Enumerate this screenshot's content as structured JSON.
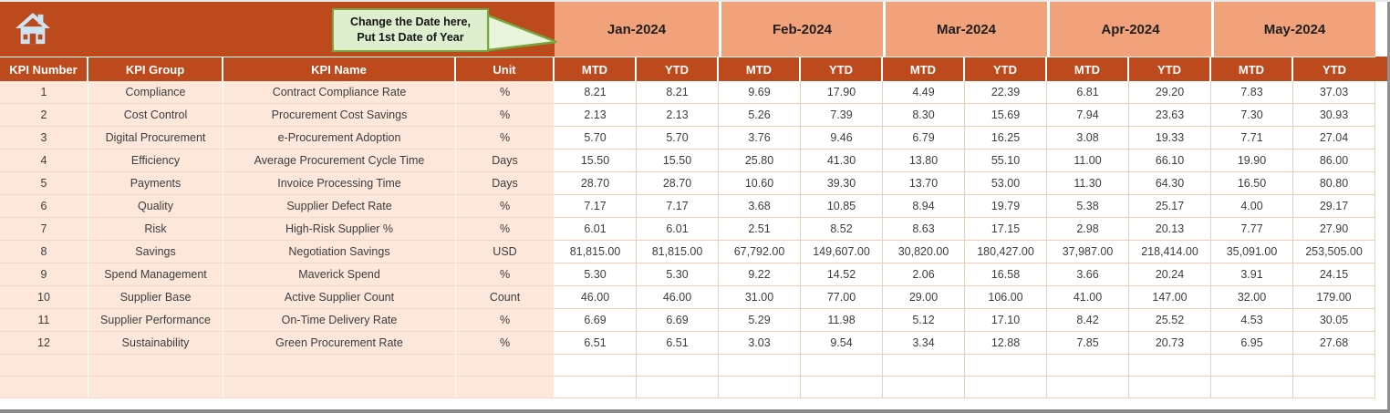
{
  "callout": {
    "line1": "Change the Date here,",
    "line2": "Put 1st Date of Year"
  },
  "table": {
    "columns": [
      "KPI Number",
      "KPI Group",
      "KPI Name",
      "Unit"
    ],
    "months": [
      "Jan-2024",
      "Feb-2024",
      "Mar-2024",
      "Apr-2024",
      "May-2024"
    ],
    "subcolumns": [
      "MTD",
      "YTD"
    ],
    "rows": [
      {
        "num": "1",
        "group": "Compliance",
        "name": "Contract Compliance Rate",
        "unit": "%",
        "values": [
          "8.21",
          "8.21",
          "9.69",
          "17.90",
          "4.49",
          "22.39",
          "6.81",
          "29.20",
          "7.83",
          "37.03"
        ]
      },
      {
        "num": "2",
        "group": "Cost Control",
        "name": "Procurement Cost Savings",
        "unit": "%",
        "values": [
          "2.13",
          "2.13",
          "5.26",
          "7.39",
          "8.30",
          "15.69",
          "7.94",
          "23.63",
          "7.30",
          "30.93"
        ]
      },
      {
        "num": "3",
        "group": "Digital Procurement",
        "name": "e-Procurement Adoption",
        "unit": "%",
        "values": [
          "5.70",
          "5.70",
          "3.76",
          "9.46",
          "6.79",
          "16.25",
          "3.08",
          "19.33",
          "7.71",
          "27.04"
        ]
      },
      {
        "num": "4",
        "group": "Efficiency",
        "name": "Average Procurement Cycle Time",
        "unit": "Days",
        "values": [
          "15.50",
          "15.50",
          "25.80",
          "41.30",
          "13.80",
          "55.10",
          "11.00",
          "66.10",
          "19.90",
          "86.00"
        ]
      },
      {
        "num": "5",
        "group": "Payments",
        "name": "Invoice Processing Time",
        "unit": "Days",
        "values": [
          "28.70",
          "28.70",
          "10.60",
          "39.30",
          "13.70",
          "53.00",
          "11.30",
          "64.30",
          "16.50",
          "80.80"
        ]
      },
      {
        "num": "6",
        "group": "Quality",
        "name": "Supplier Defect Rate",
        "unit": "%",
        "values": [
          "7.17",
          "7.17",
          "3.68",
          "10.85",
          "8.94",
          "19.79",
          "5.38",
          "25.17",
          "4.00",
          "29.17"
        ]
      },
      {
        "num": "7",
        "group": "Risk",
        "name": "High-Risk Supplier %",
        "unit": "%",
        "values": [
          "6.01",
          "6.01",
          "2.51",
          "8.52",
          "8.63",
          "17.15",
          "2.98",
          "20.13",
          "7.77",
          "27.90"
        ]
      },
      {
        "num": "8",
        "group": "Savings",
        "name": "Negotiation Savings",
        "unit": "USD",
        "values": [
          "81,815.00",
          "81,815.00",
          "67,792.00",
          "149,607.00",
          "30,820.00",
          "180,427.00",
          "37,987.00",
          "218,414.00",
          "35,091.00",
          "253,505.00"
        ]
      },
      {
        "num": "9",
        "group": "Spend Management",
        "name": "Maverick Spend",
        "unit": "%",
        "values": [
          "5.30",
          "5.30",
          "9.22",
          "14.52",
          "2.06",
          "16.58",
          "3.66",
          "20.24",
          "3.91",
          "24.15"
        ]
      },
      {
        "num": "10",
        "group": "Supplier Base",
        "name": "Active Supplier Count",
        "unit": "Count",
        "values": [
          "46.00",
          "46.00",
          "31.00",
          "77.00",
          "29.00",
          "106.00",
          "41.00",
          "147.00",
          "32.00",
          "179.00"
        ]
      },
      {
        "num": "11",
        "group": "Supplier Performance",
        "name": "On-Time Delivery Rate",
        "unit": "%",
        "values": [
          "6.69",
          "6.69",
          "5.29",
          "11.98",
          "5.12",
          "17.10",
          "8.42",
          "25.52",
          "4.53",
          "30.05"
        ]
      },
      {
        "num": "12",
        "group": "Sustainability",
        "name": "Green Procurement Rate",
        "unit": "%",
        "values": [
          "6.51",
          "6.51",
          "3.03",
          "9.54",
          "3.34",
          "12.88",
          "7.85",
          "20.73",
          "6.95",
          "27.68"
        ]
      }
    ],
    "empty_row_count": 2
  },
  "colors": {
    "rust": "#BC4A1C",
    "salmon": "#F2A27A",
    "row_pink": "#FCE7DA",
    "grid_pink": "#F2CDB4",
    "callout_bg": "#DDEFCE",
    "callout_border": "#77A63E",
    "header_text": "#FFFFFF",
    "data_text": "#3D3D3D",
    "window_edge_gray": "#8A8A8A",
    "home_icon_fill": "#CDE5F2"
  }
}
